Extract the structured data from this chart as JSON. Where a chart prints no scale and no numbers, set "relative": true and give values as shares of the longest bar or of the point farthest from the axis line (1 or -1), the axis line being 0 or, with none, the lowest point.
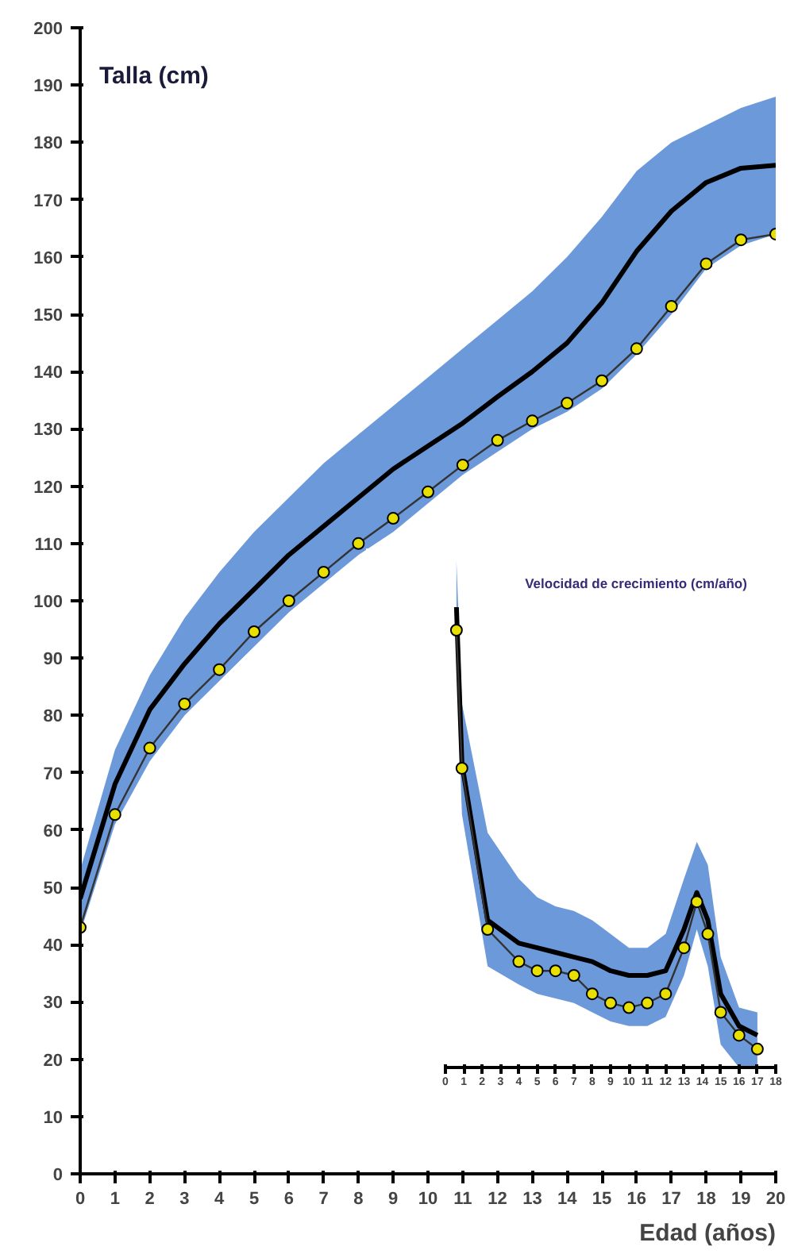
{
  "chart_data": [
    {
      "type": "line",
      "ylabel": "Talla (cm)",
      "xlabel": "Edad (años)",
      "x": [
        0,
        1,
        2,
        3,
        4,
        5,
        6,
        7,
        8,
        9,
        10,
        11,
        12,
        13,
        14,
        15,
        16,
        17,
        18,
        19,
        20
      ],
      "xlim": [
        0,
        20
      ],
      "ylim": [
        0,
        200
      ],
      "xticks": [
        0,
        1,
        2,
        3,
        4,
        5,
        6,
        7,
        8,
        9,
        10,
        11,
        12,
        13,
        14,
        15,
        16,
        17,
        18,
        19,
        20
      ],
      "yticks": [
        0,
        10,
        20,
        30,
        40,
        50,
        60,
        70,
        80,
        90,
        100,
        110,
        120,
        130,
        140,
        150,
        160,
        170,
        180,
        190,
        200
      ],
      "series": [
        {
          "color": "#000000",
          "values": [
            48,
            68,
            81,
            89,
            96,
            102,
            108,
            113,
            118,
            123,
            127,
            131,
            135.6,
            140,
            145,
            152,
            161,
            168,
            173,
            175.5,
            176
          ],
          "lower": [
            42,
            61,
            72,
            80,
            86,
            92,
            98,
            103,
            108,
            112,
            117,
            122,
            126,
            130,
            133,
            137,
            143,
            150,
            158,
            162,
            164
          ],
          "upper": [
            53,
            74,
            87,
            97,
            105,
            112,
            118,
            124,
            129,
            134,
            139,
            144,
            149,
            154,
            160,
            167,
            175,
            180,
            183,
            186,
            188
          ]
        },
        {
          "marker": "circle",
          "color": "#e8e000",
          "values": [
            43,
            62.7,
            74.3,
            82,
            88,
            94.6,
            100,
            105,
            110,
            114.4,
            119,
            123.7,
            128,
            131.4,
            134.5,
            138.4,
            144,
            151.4,
            158.8,
            163,
            164
          ]
        }
      ]
    },
    {
      "type": "line",
      "title": "Velocidad de crecimiento (cm/año)",
      "relative": true,
      "x": [
        0.6,
        0.9,
        2.3,
        4,
        5,
        6,
        7,
        8,
        9,
        10,
        11,
        12,
        13,
        13.7,
        14.3,
        15,
        16,
        17
      ],
      "xlim": [
        0,
        18
      ],
      "xticks": [
        0,
        1,
        2,
        3,
        4,
        5,
        6,
        7,
        8,
        9,
        10,
        11,
        12,
        13,
        14,
        15,
        16,
        17,
        18
      ],
      "series": [
        {
          "color": "#000000",
          "values": [
            1,
            0.66,
            0.32,
            0.27,
            0.26,
            0.25,
            0.24,
            0.23,
            0.21,
            0.2,
            0.2,
            0.21,
            0.3,
            0.38,
            0.32,
            0.16,
            0.09,
            0.07
          ],
          "lower": [
            0.88,
            0.55,
            0.22,
            0.18,
            0.16,
            0.15,
            0.14,
            0.12,
            0.1,
            0.09,
            0.09,
            0.11,
            0.2,
            0.3,
            0.22,
            0.05,
            0,
            0
          ],
          "upper": [
            1.1,
            0.79,
            0.51,
            0.41,
            0.37,
            0.35,
            0.34,
            0.32,
            0.29,
            0.26,
            0.26,
            0.29,
            0.41,
            0.49,
            0.44,
            0.24,
            0.13,
            0.12
          ]
        },
        {
          "marker": "circle",
          "color": "#e8e000",
          "values": [
            0.95,
            0.65,
            0.3,
            0.23,
            0.21,
            0.21,
            0.2,
            0.16,
            0.14,
            0.13,
            0.14,
            0.16,
            0.26,
            0.36,
            0.29,
            0.12,
            0.07,
            0.04
          ]
        }
      ]
    }
  ]
}
